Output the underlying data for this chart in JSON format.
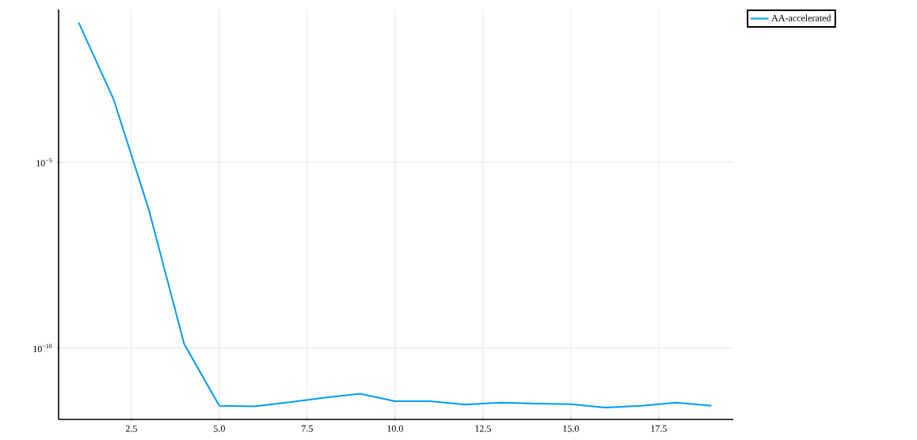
{
  "chart_data": {
    "type": "line",
    "log": "y",
    "grid": true,
    "legend": "top right",
    "x": [
      1,
      2,
      3,
      4,
      5,
      6,
      7,
      8,
      9,
      10,
      11,
      12,
      13,
      14,
      15,
      16,
      17,
      18,
      19
    ],
    "xlim": [
      0.43,
      19.62
    ],
    "ylim": [
      1.2e-12,
      0.13
    ],
    "xticks": [
      {
        "value": 2.5,
        "label": "2.5"
      },
      {
        "value": 5,
        "label": "5.0"
      },
      {
        "value": 7.5,
        "label": "7.5"
      },
      {
        "value": 10,
        "label": "10.0"
      },
      {
        "value": 12.5,
        "label": "12.5"
      },
      {
        "value": 15,
        "label": "15.0"
      },
      {
        "value": 17.5,
        "label": "17.5"
      }
    ],
    "yticks": [
      {
        "value": 1e-10,
        "label": "10$^{−10}$"
      },
      {
        "value": 1e-05,
        "label": "10$^{−5}$"
      }
    ],
    "series": [
      {
        "name": "AA-accelerated",
        "color": "#009af9",
        "values": [
          0.058,
          0.00048,
          5.2e-07,
          1.3e-10,
          2.8e-12,
          2.7e-12,
          3.5e-12,
          4.6e-12,
          5.9e-12,
          3.7e-12,
          3.7e-12,
          3e-12,
          3.4e-12,
          3.2e-12,
          3.1e-12,
          2.5e-12,
          2.8e-12,
          3.4e-12,
          2.8e-12
        ]
      }
    ]
  }
}
